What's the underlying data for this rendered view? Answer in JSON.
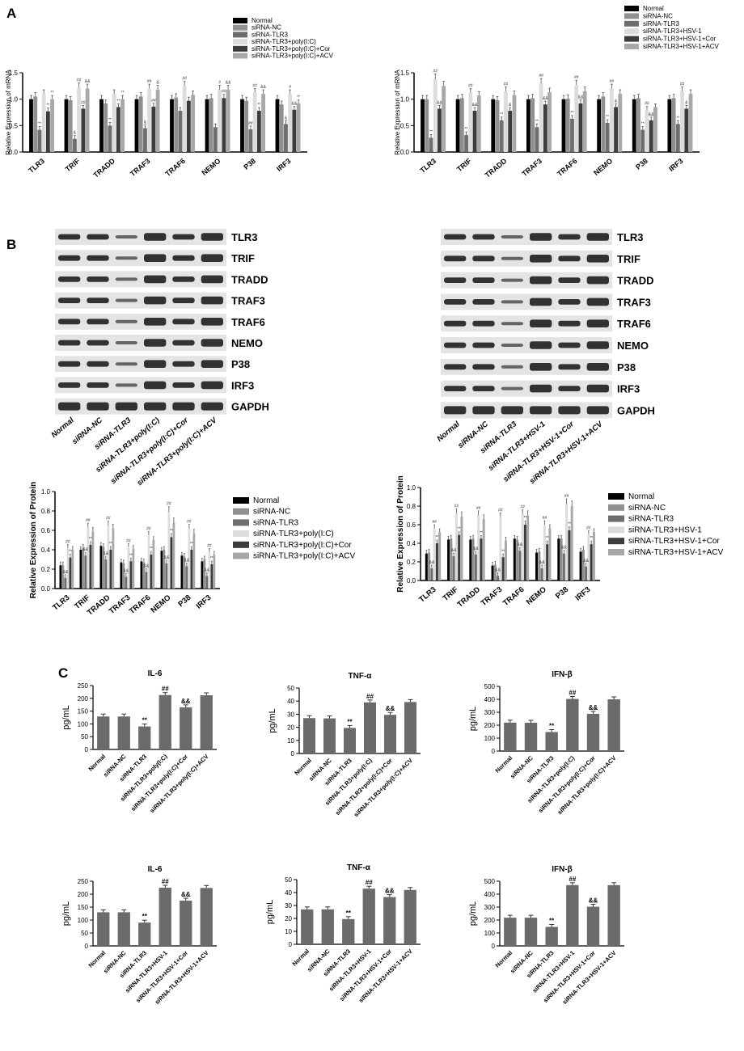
{
  "panels": {
    "A": "A",
    "B": "B",
    "C": "C"
  },
  "colors": {
    "s1": "#000000",
    "s2": "#909090",
    "s3": "#6e6e6e",
    "s4": "#dcdcdc",
    "s5": "#3c3c3c",
    "s6": "#a8a8a8",
    "bar": "#6b6b6b",
    "band": "#1e1e1e",
    "blot_bg": "#e4e4e4"
  },
  "blots": {
    "left": {
      "proteins": [
        "TLR3",
        "TRIF",
        "TRADD",
        "TRAF3",
        "TRAF6",
        "NEMO",
        "P38",
        "IRF3",
        "GAPDH"
      ],
      "lanes": [
        "Normal",
        "siRNA-NC",
        "siRNA-TLR3",
        "siRNA-TLR3+poly(I:C)",
        "siRNA-TLR3+poly(I:C)+Cor",
        "siRNA-TLR3+poly(I:C)+ACV"
      ]
    },
    "right": {
      "proteins": [
        "TLR3",
        "TRIF",
        "TRADD",
        "TRAF3",
        "TRAF6",
        "NEMO",
        "P38",
        "IRF3",
        "GAPDH"
      ],
      "lanes": [
        "Normal",
        "siRNA-NC",
        "siRNA-TLR3",
        "siRNA-TLR3+HSV-1",
        "siRNA-TLR3+HSV-1+Cor",
        "siRNA-TLR3+HSV-1+ACV"
      ]
    }
  },
  "chart_data": [
    {
      "id": "a_left",
      "type": "bar",
      "title": "",
      "ylabel": "Relative Expression of mRNA",
      "xlabel": "",
      "ylim": [
        0,
        1.5
      ],
      "yticks": [
        "0.0",
        "0.5",
        "1.0",
        "1.5"
      ],
      "legend_position": "top-right",
      "categories": [
        "TLR3",
        "TRIF",
        "TRADD",
        "TRAF3",
        "TRAF6",
        "NEMO",
        "P38",
        "IRF3"
      ],
      "series": [
        {
          "name": "Normal",
          "values": [
            1.0,
            1.0,
            1.0,
            1.0,
            1.0,
            1.0,
            1.0,
            1.0
          ]
        },
        {
          "name": "siRNA-NC",
          "values": [
            1.05,
            0.98,
            0.92,
            1.05,
            1.03,
            1.02,
            0.97,
            0.9
          ]
        },
        {
          "name": "siRNA-TLR3",
          "values": [
            0.42,
            0.25,
            0.5,
            0.45,
            0.78,
            0.47,
            0.43,
            0.53
          ]
        },
        {
          "name": "siRNA-TLR3+poly(I:C)",
          "values": [
            1.1,
            1.22,
            1.1,
            1.2,
            1.25,
            1.18,
            1.12,
            1.1
          ]
        },
        {
          "name": "siRNA-TLR3+poly(I:C)+Cor",
          "values": [
            0.77,
            0.82,
            0.85,
            0.86,
            0.97,
            1.02,
            0.78,
            0.8
          ]
        },
        {
          "name": "siRNA-TLR3+poly(I:C)+ACV",
          "values": [
            1.0,
            1.2,
            1.0,
            1.18,
            1.08,
            1.18,
            1.1,
            0.92
          ]
        }
      ],
      "marks": [
        [
          "",
          "##",
          "",
          "##",
          "##",
          "#",
          "##",
          "#"
        ],
        [
          "**",
          "&",
          "**",
          "&",
          "",
          "",
          "##",
          "&"
        ],
        [
          "**",
          "##",
          "**",
          "##",
          "",
          "##",
          "**",
          "&&"
        ],
        [
          "**",
          "&&",
          "**",
          "&",
          "",
          "&&",
          "&&",
          "**"
        ]
      ]
    },
    {
      "id": "a_right",
      "type": "bar",
      "title": "",
      "ylabel": "Relative Expression of mRNA",
      "xlabel": "",
      "ylim": [
        0,
        1.5
      ],
      "yticks": [
        "0.0",
        "0.5",
        "1.0",
        "1.5"
      ],
      "legend_position": "top-right",
      "categories": [
        "TLR3",
        "TRIF",
        "TRADD",
        "TRAF3",
        "TRAF6",
        "NEMO",
        "P38",
        "IRF3"
      ],
      "series": [
        {
          "name": "Normal",
          "values": [
            1.0,
            1.0,
            1.0,
            1.0,
            1.0,
            1.0,
            1.0,
            1.0
          ]
        },
        {
          "name": "siRNA-NC",
          "values": [
            1.0,
            1.02,
            0.98,
            1.02,
            1.01,
            1.05,
            1.02,
            1.02
          ]
        },
        {
          "name": "siRNA-TLR3",
          "values": [
            0.27,
            0.32,
            0.6,
            0.47,
            0.63,
            0.55,
            0.42,
            0.53
          ]
        },
        {
          "name": "siRNA-TLR3+HSV-1",
          "values": [
            1.38,
            1.12,
            1.15,
            1.3,
            1.27,
            1.2,
            0.8,
            1.15
          ]
        },
        {
          "name": "siRNA-TLR3+HSV-1+Cor",
          "values": [
            0.82,
            0.78,
            0.78,
            0.9,
            0.92,
            0.85,
            0.6,
            0.82
          ]
        },
        {
          "name": "siRNA-TLR3+HSV-1+ACV",
          "values": [
            1.25,
            1.07,
            1.08,
            1.13,
            1.15,
            1.1,
            0.85,
            1.1
          ]
        }
      ],
      "marks": [
        [
          "##",
          "##",
          "##",
          "##",
          "##",
          "##",
          "##",
          "##"
        ],
        [
          "**",
          "**",
          "**",
          "**",
          "**",
          "**",
          "**",
          "**"
        ],
        [
          "&&",
          "&&",
          "&",
          "&&",
          "&&",
          "&",
          "&&",
          "&"
        ]
      ]
    },
    {
      "id": "b_left",
      "type": "bar",
      "title": "",
      "ylabel": "Relative Expression of Protein",
      "xlabel": "",
      "ylim": [
        0,
        1.0
      ],
      "yticks": [
        "0.0",
        "0.2",
        "0.4",
        "0.6",
        "0.8",
        "1.0"
      ],
      "legend_position": "right",
      "categories": [
        "TLR3",
        "TRIF",
        "TRADD",
        "TRAF3",
        "TRAF6",
        "NEMO",
        "P38",
        "IRF3"
      ],
      "series": [
        {
          "name": "Normal",
          "values": [
            0.24,
            0.4,
            0.44,
            0.27,
            0.28,
            0.39,
            0.34,
            0.28
          ]
        },
        {
          "name": "siRNA-NC",
          "values": [
            0.24,
            0.42,
            0.43,
            0.26,
            0.27,
            0.4,
            0.33,
            0.3
          ]
        },
        {
          "name": "siRNA-TLR3",
          "values": [
            0.11,
            0.34,
            0.3,
            0.12,
            0.17,
            0.26,
            0.23,
            0.13
          ]
        },
        {
          "name": "siRNA-TLR3+poly(I:C)",
          "values": [
            0.42,
            0.63,
            0.65,
            0.43,
            0.55,
            0.79,
            0.62,
            0.38
          ]
        },
        {
          "name": "siRNA-TLR3+poly(I:C)+Cor",
          "values": [
            0.32,
            0.45,
            0.4,
            0.28,
            0.35,
            0.53,
            0.4,
            0.25
          ]
        },
        {
          "name": "siRNA-TLR3+poly(I:C)+ACV",
          "values": [
            0.4,
            0.59,
            0.62,
            0.41,
            0.5,
            0.68,
            0.57,
            0.35
          ]
        }
      ],
      "marks": [
        [
          "##",
          "##",
          "##",
          "##",
          "##",
          "##",
          "##",
          "##"
        ],
        [
          "&&",
          "&&",
          "&&",
          "&&",
          "&&",
          "&&",
          "&&",
          "&&"
        ],
        [
          "**",
          "**",
          "**",
          "**",
          "**",
          "**",
          "**",
          "**"
        ]
      ]
    },
    {
      "id": "b_right",
      "type": "bar",
      "title": "",
      "ylabel": "Relative Expression of Protein",
      "xlabel": "",
      "ylim": [
        0,
        1.0
      ],
      "yticks": [
        "0.0",
        "0.2",
        "0.4",
        "0.6",
        "0.8",
        "1.0"
      ],
      "legend_position": "right",
      "categories": [
        "TLR3",
        "TRIF",
        "TRADD",
        "TRAF3",
        "TRAF6",
        "NEMO",
        "P38",
        "IRF3"
      ],
      "series": [
        {
          "name": "Normal",
          "values": [
            0.29,
            0.44,
            0.44,
            0.16,
            0.45,
            0.3,
            0.45,
            0.31
          ]
        },
        {
          "name": "siRNA-NC",
          "values": [
            0.3,
            0.45,
            0.45,
            0.17,
            0.44,
            0.31,
            0.45,
            0.33
          ]
        },
        {
          "name": "siRNA-TLR3",
          "values": [
            0.13,
            0.26,
            0.28,
            0.05,
            0.32,
            0.13,
            0.29,
            0.15
          ]
        },
        {
          "name": "siRNA-TLR3+HSV-1",
          "values": [
            0.56,
            0.72,
            0.7,
            0.68,
            0.71,
            0.6,
            0.82,
            0.5
          ]
        },
        {
          "name": "siRNA-TLR3+HSV-1+Cor",
          "values": [
            0.4,
            0.49,
            0.45,
            0.25,
            0.6,
            0.39,
            0.54,
            0.39
          ]
        },
        {
          "name": "siRNA-TLR3+HSV-1+ACV",
          "values": [
            0.52,
            0.69,
            0.66,
            0.43,
            0.7,
            0.56,
            0.8,
            0.52
          ]
        }
      ],
      "marks": [
        [
          "##",
          "##",
          "##",
          "##",
          "##",
          "##",
          "##",
          "##"
        ],
        [
          "&&",
          "&&",
          "&&",
          "&&",
          "&&",
          "&&",
          "&&",
          "&&"
        ],
        [
          "**",
          "**",
          "**",
          "**",
          "**",
          "**",
          "**",
          "**"
        ]
      ]
    },
    {
      "id": "c1_il6",
      "type": "bar",
      "title": "IL-6",
      "ylabel": "pg/mL",
      "xlabel": "",
      "ylim": [
        0,
        250
      ],
      "yticks": [
        "0",
        "50",
        "100",
        "150",
        "200",
        "250"
      ],
      "categories": [
        "Normal",
        "siRNA-NC",
        "siRNA-TLR3",
        "siRNA-TLR3+poly(I:C)",
        "siRNA-TLR3+poly(I:C)+Cor",
        "siRNA-TLR3+poly(I:C)+ACV"
      ],
      "values": [
        129,
        129,
        90,
        213,
        165,
        212
      ],
      "marks": [
        "",
        "",
        "**",
        "##",
        "&&",
        ""
      ]
    },
    {
      "id": "c1_tnf",
      "type": "bar",
      "title": "TNF-α",
      "ylabel": "pg/mL",
      "xlabel": "",
      "ylim": [
        0,
        50
      ],
      "yticks": [
        "0",
        "10",
        "20",
        "30",
        "40",
        "50"
      ],
      "categories": [
        "Normal",
        "siRNA-NC",
        "siRNA-TLR3",
        "siRNA-TLR3+poly(I:C)",
        "siRNA-TLR3+poly(I:C)+Cor",
        "siRNA-TLR3+poly(I:C)+ACV"
      ],
      "values": [
        27,
        26.8,
        19.5,
        39,
        29.5,
        39.3
      ],
      "marks": [
        "",
        "",
        "**",
        "##",
        "&&",
        ""
      ]
    },
    {
      "id": "c1_ifn",
      "type": "bar",
      "title": "IFN-β",
      "ylabel": "pg/mL",
      "xlabel": "",
      "ylim": [
        0,
        500
      ],
      "yticks": [
        "0",
        "100",
        "200",
        "300",
        "400",
        "500"
      ],
      "categories": [
        "Normal",
        "siRNA-NC",
        "siRNA-TLR3",
        "siRNA-TLR3+poly(I:C)",
        "siRNA-TLR3+poly(I:C)+Cor",
        "siRNA-TLR3+poly(I:C)+ACV"
      ],
      "values": [
        220,
        219,
        147,
        403,
        288,
        400
      ],
      "marks": [
        "",
        "",
        "**",
        "##",
        "&&",
        ""
      ]
    },
    {
      "id": "c2_il6",
      "type": "bar",
      "title": "IL-6",
      "ylabel": "pg/mL",
      "xlabel": "",
      "ylim": [
        0,
        250
      ],
      "yticks": [
        "0",
        "50",
        "100",
        "150",
        "200",
        "250"
      ],
      "categories": [
        "Normal",
        "siRNA-NC",
        "siRNA-TLR3",
        "siRNA-TLR3+HSV-1",
        "siRNA-TLR3+HSV-1+Cor",
        "siRNA-TLR3+HSV-1+ACV"
      ],
      "values": [
        130,
        130,
        90,
        225,
        175,
        224
      ],
      "marks": [
        "",
        "",
        "**",
        "##",
        "&&",
        ""
      ]
    },
    {
      "id": "c2_tnf",
      "type": "bar",
      "title": "TNF-α",
      "ylabel": "pg/mL",
      "xlabel": "",
      "ylim": [
        0,
        50
      ],
      "yticks": [
        "0",
        "10",
        "20",
        "30",
        "40",
        "50"
      ],
      "categories": [
        "Normal",
        "siRNA-NC",
        "siRNA-TLR3",
        "siRNA-TLR3+HSV-1",
        "siRNA-TLR3+HSV-1+Cor",
        "siRNA-TLR3+HSV-1+ACV"
      ],
      "values": [
        27,
        27,
        19.5,
        43,
        36.5,
        42
      ],
      "marks": [
        "",
        "",
        "**",
        "##",
        "&&",
        ""
      ]
    },
    {
      "id": "c2_ifn",
      "type": "bar",
      "title": "IFN-β",
      "ylabel": "pg/mL",
      "xlabel": "",
      "ylim": [
        0,
        500
      ],
      "yticks": [
        "0",
        "100",
        "200",
        "300",
        "400",
        "500"
      ],
      "categories": [
        "Normal",
        "siRNA-NC",
        "siRNA-TLR3",
        "siRNA-TLR3+HSV-1",
        "siRNA-TLR3+HSV-1+Cor",
        "siRNA-TLR3+HSV-1+ACV"
      ],
      "values": [
        218,
        218,
        147,
        470,
        303,
        470
      ],
      "marks": [
        "",
        "",
        "**",
        "##",
        "&&",
        ""
      ]
    }
  ]
}
